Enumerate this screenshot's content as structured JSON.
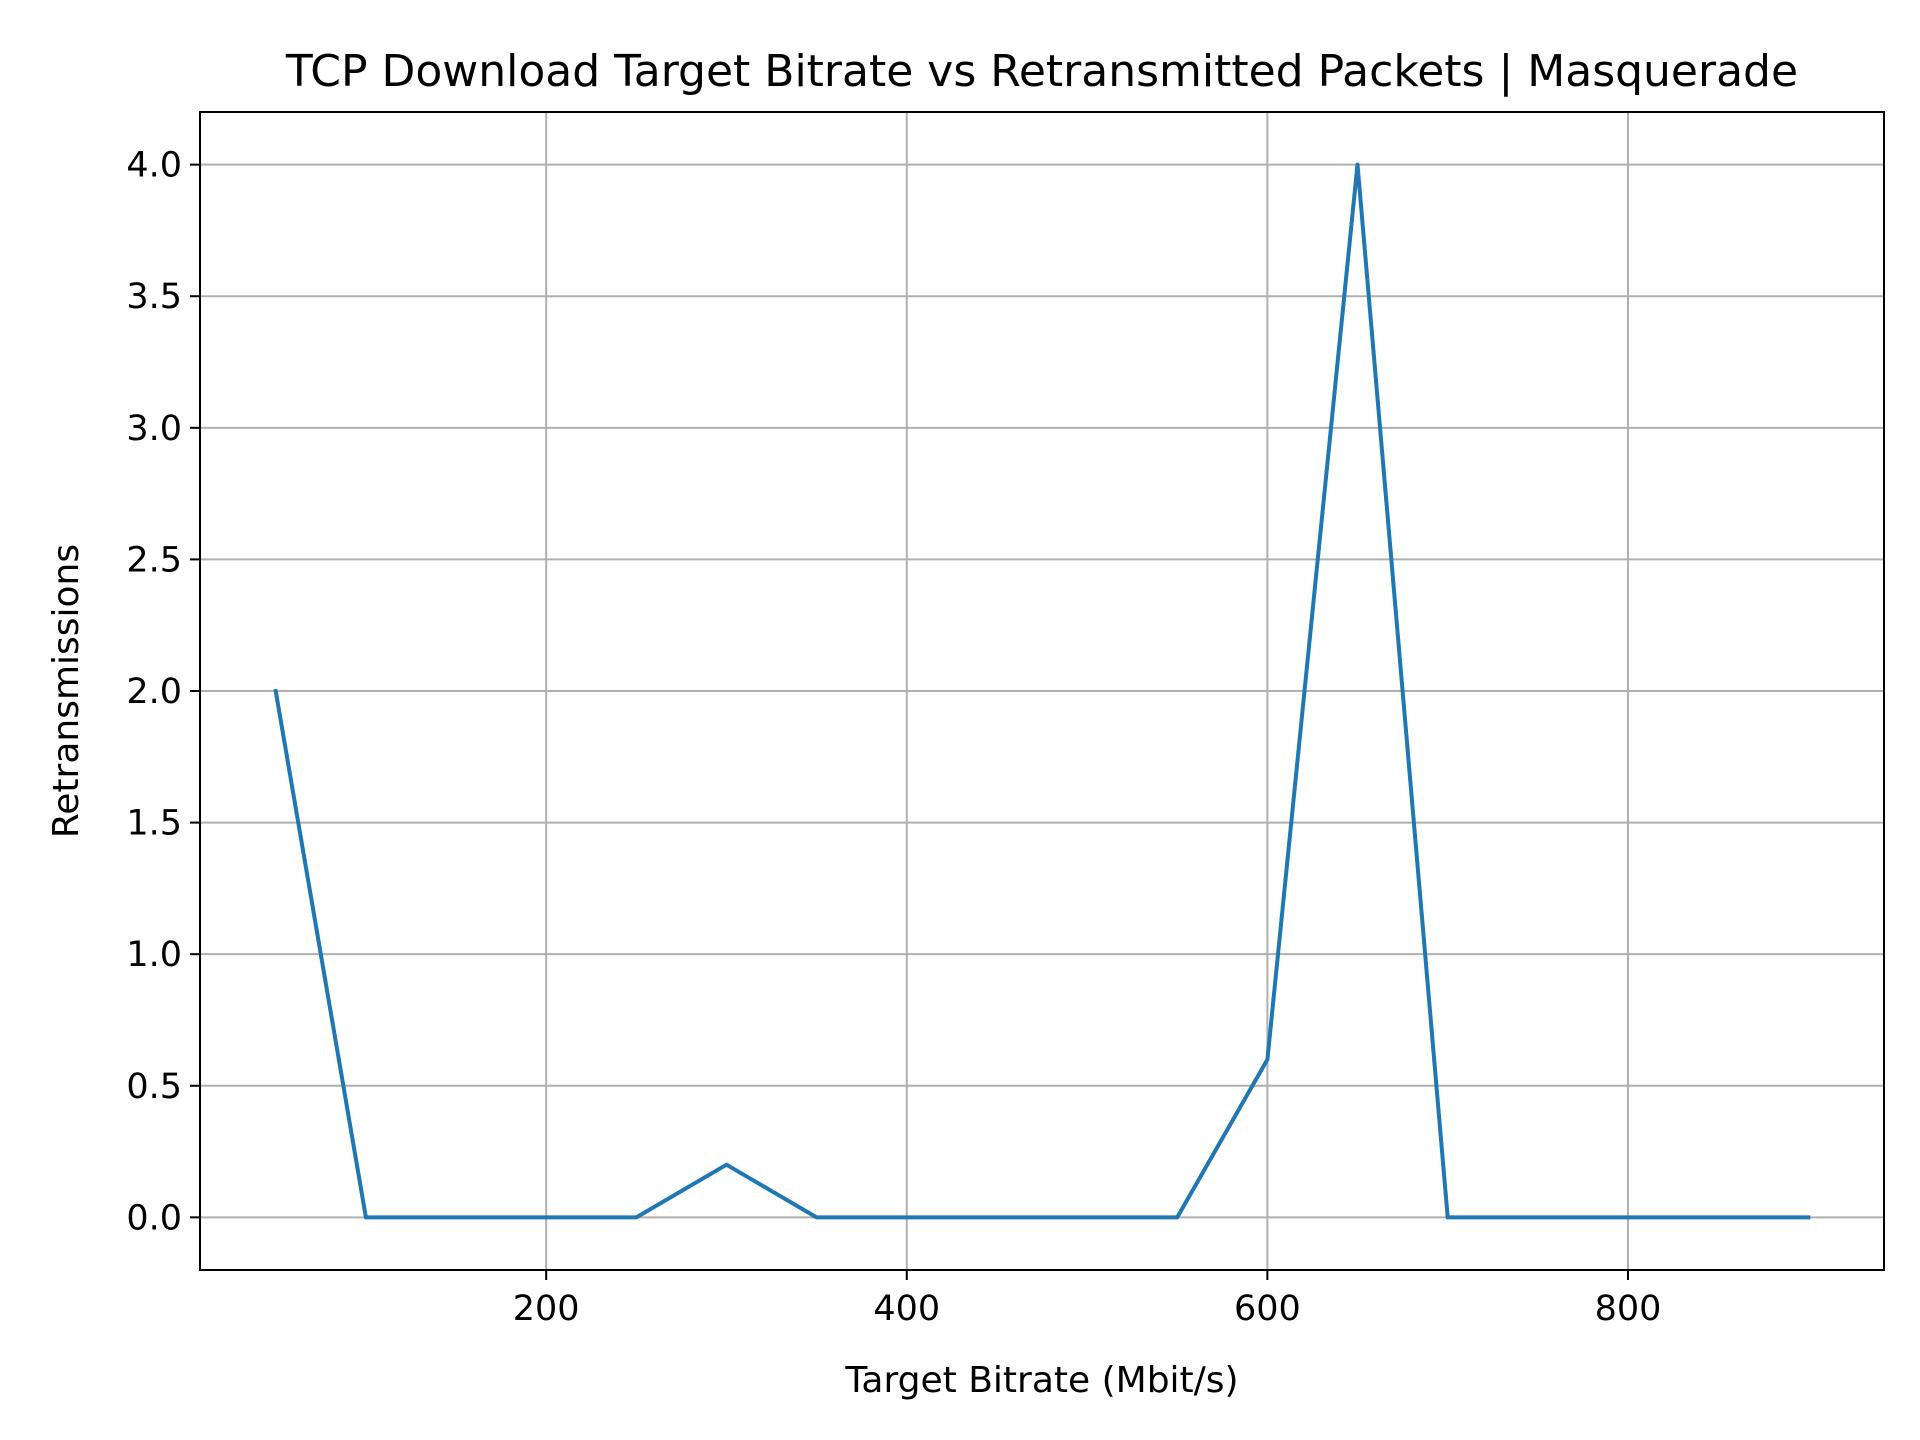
{
  "chart_data": {
    "type": "line",
    "title": "TCP Download Target Bitrate vs Retransmitted Packets | Masquerade",
    "xlabel": "Target Bitrate (Mbit/s)",
    "ylabel": "Retransmissions",
    "xlim": [
      8,
      942
    ],
    "ylim": [
      -0.2,
      4.2
    ],
    "xticks": [
      200,
      400,
      600,
      800
    ],
    "yticks": [
      0.0,
      0.5,
      1.0,
      1.5,
      2.0,
      2.5,
      3.0,
      3.5,
      4.0
    ],
    "grid": true,
    "legend": "none",
    "series": [
      {
        "color": "#1f77b4",
        "x": [
          50,
          100,
          150,
          200,
          250,
          300,
          350,
          400,
          450,
          500,
          550,
          600,
          650,
          700,
          750,
          800,
          850,
          900
        ],
        "y": [
          2.0,
          0.0,
          0.0,
          0.0,
          0.0,
          0.2,
          0.0,
          0.0,
          0.0,
          0.0,
          0.0,
          0.6,
          4.0,
          0.0,
          0.0,
          0.0,
          0.0,
          0.0
        ]
      }
    ],
    "colors": {
      "grid": "#b0b0b0",
      "axes": "#000000",
      "background": "#ffffff"
    }
  }
}
